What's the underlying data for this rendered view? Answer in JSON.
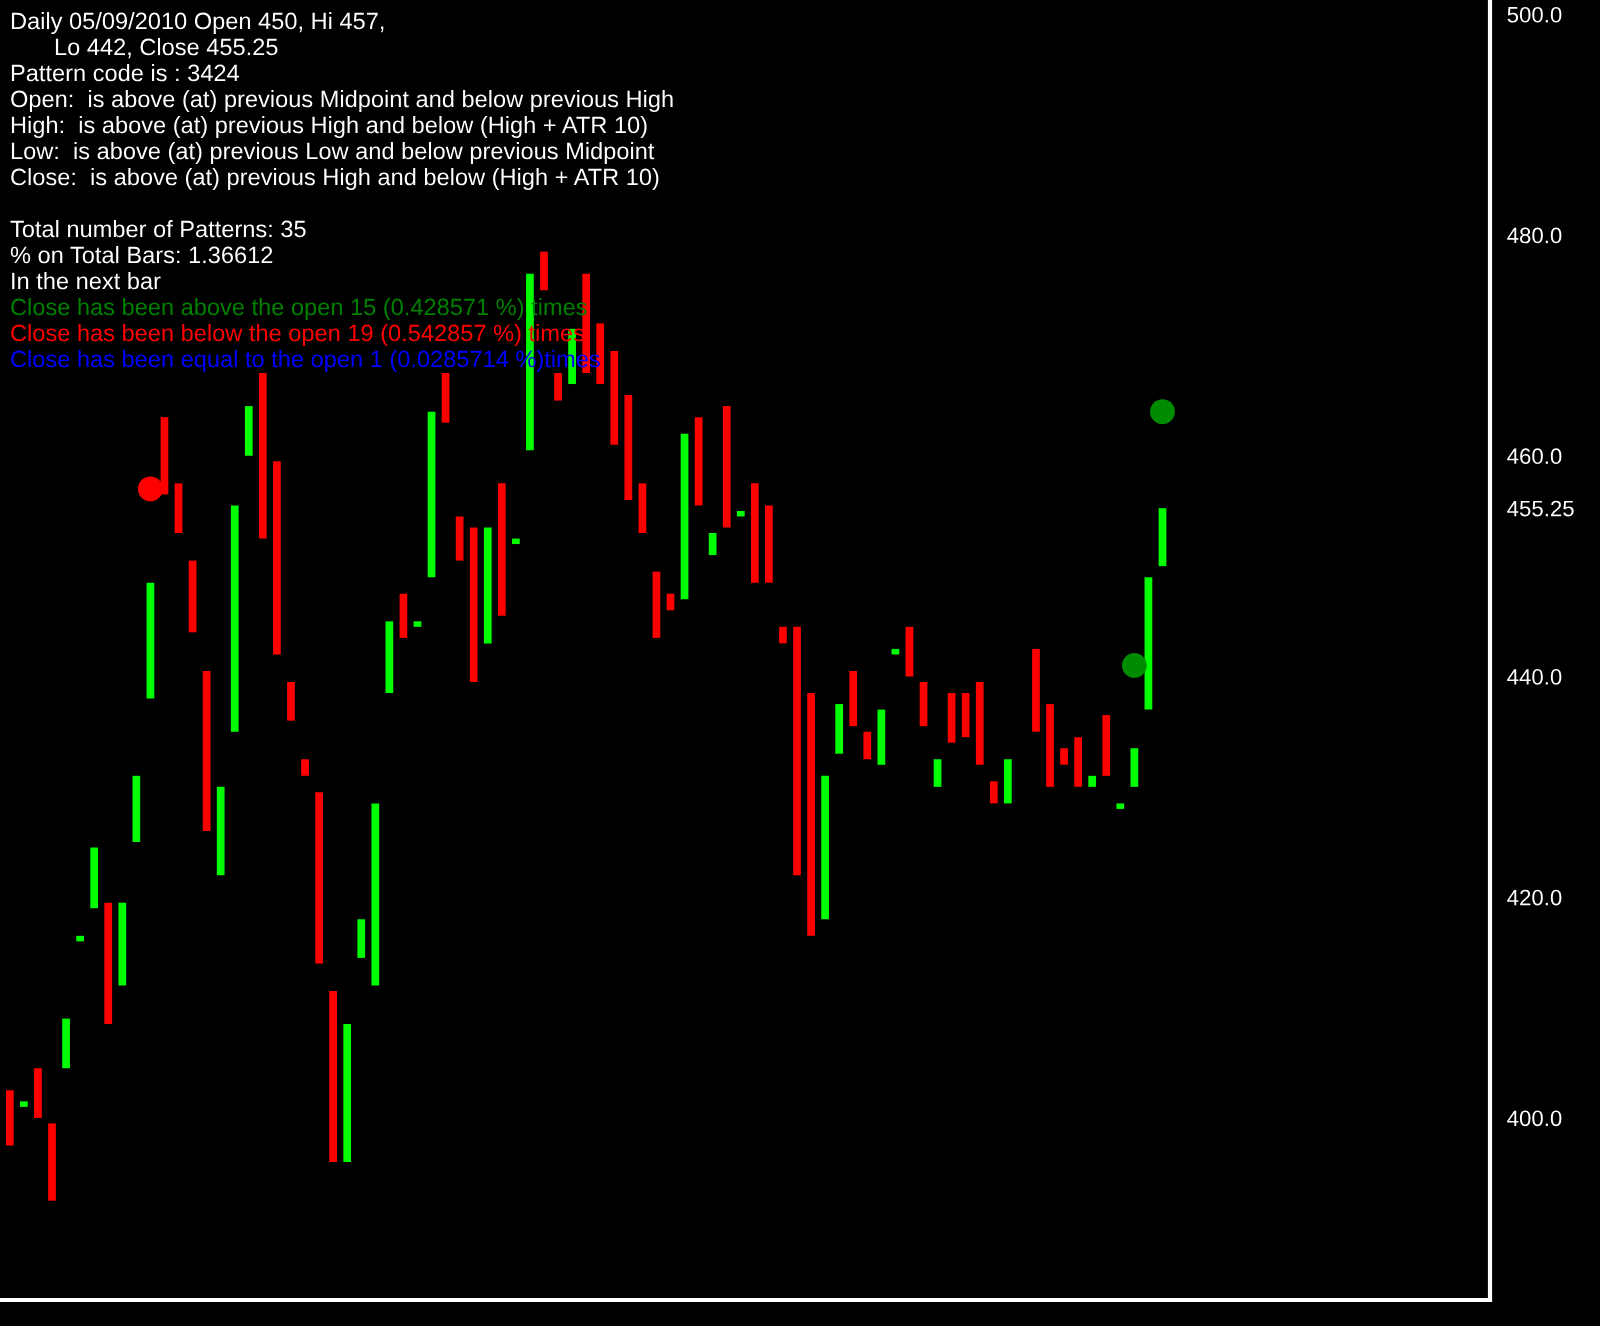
{
  "chart_data": {
    "type": "candlestick",
    "title": "Daily 05/09/2010 Open 450, Hi 457,\nLo 442, Close 455.25",
    "categories": [
      null,
      null,
      null,
      null,
      null,
      null,
      null,
      null,
      null,
      null,
      null,
      null,
      null,
      null,
      null,
      null,
      null,
      null,
      null,
      null,
      null,
      null,
      null,
      null,
      null,
      null,
      null,
      null,
      null,
      null,
      null,
      null,
      null,
      null,
      null,
      null,
      null,
      null,
      null,
      null,
      null,
      null,
      null,
      null,
      null,
      null,
      null,
      null,
      null,
      null,
      null,
      null,
      null,
      null,
      null,
      null,
      null,
      null,
      null,
      null,
      null,
      null,
      null,
      null,
      null,
      null,
      null,
      null,
      null,
      null,
      null,
      null,
      null,
      null,
      null,
      null,
      null,
      null,
      null,
      null,
      null,
      null,
      null,
      null,
      null,
      null,
      null,
      null,
      null,
      null,
      null,
      null,
      null,
      null,
      null,
      null,
      null,
      null,
      null,
      null,
      null,
      null,
      null,
      null,
      null,
      null
    ],
    "ohlc": [
      [
        402.5,
        402.5,
        397.5,
        397.5
      ],
      [
        401,
        401.5,
        401,
        401.5
      ],
      [
        404.5,
        404.5,
        400,
        400
      ],
      [
        399.5,
        399.5,
        392.5,
        392.5
      ],
      [
        404.5,
        409,
        404.5,
        409
      ],
      [
        416,
        416.5,
        416,
        416.5
      ],
      [
        419,
        424.5,
        419,
        424.5
      ],
      [
        419.5,
        419.5,
        408.5,
        408.5
      ],
      [
        412,
        419.5,
        412,
        419.5
      ],
      [
        425,
        431,
        425,
        431
      ],
      [
        438,
        448.5,
        438,
        448.5
      ],
      [
        463.5,
        463.5,
        456.5,
        456.5
      ],
      [
        457.5,
        457.5,
        453,
        453
      ],
      [
        450.5,
        450.5,
        444,
        444
      ],
      [
        440.5,
        440.5,
        426,
        426
      ],
      [
        422,
        430,
        422,
        430
      ],
      [
        435,
        455.5,
        435,
        455.5
      ],
      [
        460,
        464.5,
        460,
        464.5
      ],
      [
        467.5,
        467.5,
        452.5,
        452.5
      ],
      [
        459.5,
        459.5,
        442,
        442
      ],
      [
        439.5,
        439.5,
        436,
        436
      ],
      [
        432.5,
        432.5,
        431,
        431
      ],
      [
        429.5,
        429.5,
        414,
        414
      ],
      [
        411.5,
        411.5,
        396,
        396
      ],
      [
        396,
        408.5,
        396,
        408.5
      ],
      [
        414.5,
        418,
        414.5,
        418
      ],
      [
        412,
        428.5,
        412,
        428.5
      ],
      [
        438.5,
        445,
        438.5,
        445
      ],
      [
        447.5,
        447.5,
        443.5,
        443.5
      ],
      [
        444.5,
        445,
        444.5,
        445
      ],
      [
        449,
        464,
        449,
        464
      ],
      [
        467.5,
        467.5,
        463,
        463
      ],
      [
        454.5,
        454.5,
        450.5,
        450.5
      ],
      [
        453.5,
        453.5,
        439.5,
        439.5
      ],
      [
        443,
        453.5,
        443,
        453.5
      ],
      [
        457.5,
        457.5,
        445.5,
        445.5
      ],
      [
        452,
        452.5,
        452,
        452.5
      ],
      [
        460.5,
        476.5,
        460.5,
        476.5
      ],
      [
        478.5,
        478.5,
        475,
        475
      ],
      [
        467.5,
        467.5,
        465,
        465
      ],
      [
        466.5,
        471.5,
        466.5,
        471.5
      ],
      [
        476.5,
        476.5,
        467.5,
        467.5
      ],
      [
        472,
        472,
        466.5,
        466.5
      ],
      [
        469.5,
        469.5,
        461,
        461
      ],
      [
        465.5,
        465.5,
        456,
        456
      ],
      [
        457.5,
        457.5,
        453,
        453
      ],
      [
        449.5,
        449.5,
        443.5,
        443.5
      ],
      [
        447.5,
        447.5,
        446,
        446
      ],
      [
        447,
        462,
        447,
        462
      ],
      [
        463.5,
        463.5,
        455.5,
        455.5
      ],
      [
        451,
        453,
        451,
        453
      ],
      [
        464.5,
        464.5,
        453.5,
        453.5
      ],
      [
        454.5,
        455,
        454.5,
        455
      ],
      [
        457.5,
        457.5,
        448.5,
        448.5
      ],
      [
        455.5,
        455.5,
        448.5,
        448.5
      ],
      [
        444.5,
        444.5,
        443,
        443
      ],
      [
        444.5,
        444.5,
        422,
        422
      ],
      [
        438.5,
        438.5,
        416.5,
        416.5
      ],
      [
        418,
        431,
        418,
        431
      ],
      [
        433,
        437.5,
        433,
        437.5
      ],
      [
        440.5,
        440.5,
        435.5,
        435.5
      ],
      [
        435,
        435,
        432.5,
        432.5
      ],
      [
        432,
        437,
        432,
        437
      ],
      [
        442,
        442.5,
        442,
        442.5
      ],
      [
        444.5,
        444.5,
        440,
        440
      ],
      [
        439.5,
        439.5,
        435.5,
        435.5
      ],
      [
        430,
        432.5,
        430,
        432.5
      ],
      [
        438.5,
        438.5,
        434,
        434
      ],
      [
        438.5,
        438.5,
        434.5,
        434.5
      ],
      [
        439.5,
        439.5,
        432,
        432
      ],
      [
        430.5,
        430.5,
        428.5,
        428.5
      ],
      [
        428.5,
        432.5,
        428.5,
        432.5
      ],
      null,
      [
        442.5,
        442.5,
        435,
        435
      ],
      [
        437.5,
        437.5,
        430,
        430
      ],
      [
        433.5,
        433.5,
        432,
        432
      ],
      [
        434.5,
        434.5,
        430,
        430
      ],
      [
        430,
        431,
        430,
        431
      ],
      [
        436.5,
        436.5,
        431,
        431
      ],
      [
        428,
        428.5,
        428,
        428.5
      ],
      [
        430,
        433.5,
        430,
        433.5
      ],
      [
        437,
        449,
        437,
        449
      ],
      [
        450,
        455.25,
        450,
        455.25
      ],
      null,
      null,
      null,
      null,
      null,
      null,
      null,
      null,
      null,
      null,
      null,
      null,
      null,
      null,
      null,
      null,
      null,
      null,
      null,
      null,
      null,
      null,
      null
    ],
    "series": [
      {
        "type": "scatter",
        "color": "#ff0000",
        "values": [
          null,
          null,
          null,
          null,
          null,
          null,
          null,
          null,
          null,
          null,
          457,
          null,
          null,
          null,
          null,
          null,
          null,
          null,
          null,
          null,
          null,
          null,
          null,
          null,
          null,
          null,
          null,
          null,
          null,
          null,
          null,
          null,
          null,
          null,
          null,
          null,
          null,
          null,
          null,
          null,
          null,
          null,
          null,
          null,
          null,
          null,
          null,
          null,
          null,
          null,
          null,
          null,
          null,
          null,
          null,
          null,
          null,
          null,
          null,
          null,
          null,
          null,
          null,
          null,
          null,
          null,
          null,
          null,
          null,
          null,
          null,
          null,
          null,
          null,
          null,
          null,
          null,
          null,
          null,
          null,
          null,
          null,
          null,
          null,
          null,
          null,
          null,
          null,
          null,
          null,
          null,
          null,
          null,
          null,
          null,
          null,
          null,
          null,
          null,
          null,
          null,
          null,
          null,
          null,
          null,
          null
        ]
      },
      {
        "type": "scatter",
        "color": "#008c00",
        "values": [
          null,
          null,
          null,
          null,
          null,
          null,
          null,
          null,
          null,
          null,
          null,
          null,
          null,
          null,
          null,
          null,
          null,
          null,
          null,
          null,
          null,
          null,
          null,
          null,
          null,
          null,
          null,
          null,
          null,
          null,
          null,
          null,
          null,
          null,
          null,
          null,
          null,
          null,
          null,
          null,
          null,
          null,
          null,
          null,
          null,
          null,
          null,
          null,
          null,
          null,
          null,
          null,
          null,
          null,
          null,
          null,
          null,
          null,
          null,
          null,
          null,
          null,
          null,
          null,
          null,
          null,
          null,
          null,
          null,
          null,
          null,
          null,
          null,
          null,
          null,
          null,
          null,
          null,
          null,
          null,
          441,
          null,
          464,
          null,
          null,
          null,
          null,
          null,
          null,
          null,
          null,
          null,
          null,
          null,
          null,
          null,
          null,
          null,
          null,
          null,
          null,
          null,
          null,
          null,
          null,
          null
        ]
      }
    ],
    "ylim": [
      383.5,
      501.3
    ],
    "yticks": [
      {
        "value": 400,
        "label": "400.0"
      },
      {
        "value": 420,
        "label": "420.0"
      },
      {
        "value": 440,
        "label": "440.0"
      },
      {
        "value": 455.25,
        "label": "455.25"
      },
      {
        "value": 460,
        "label": "460.0"
      },
      {
        "value": 480,
        "label": "480.0"
      },
      {
        "value": 500,
        "label": "500.0"
      }
    ],
    "annotations": [
      "Pattern code is : 3424",
      "Open:  is above (at) previous Midpoint and below previous High",
      "High:  is above (at) previous High and below (High + ATR 10)",
      "Low:  is above (at) previous Low and below previous Midpoint",
      "Close:  is above (at) previous High and below (High + ATR 10)",
      "Total number of Patterns: 35",
      "% on Total Bars: 1.36612",
      "In the next bar",
      "Close has been above the open 15 (0.428571 %) times",
      "Close has been below the open 19 (0.542857 %) times",
      "Close has been equal to the open 1 (0.0285714 %)times"
    ],
    "grid": false,
    "legend": false
  }
}
